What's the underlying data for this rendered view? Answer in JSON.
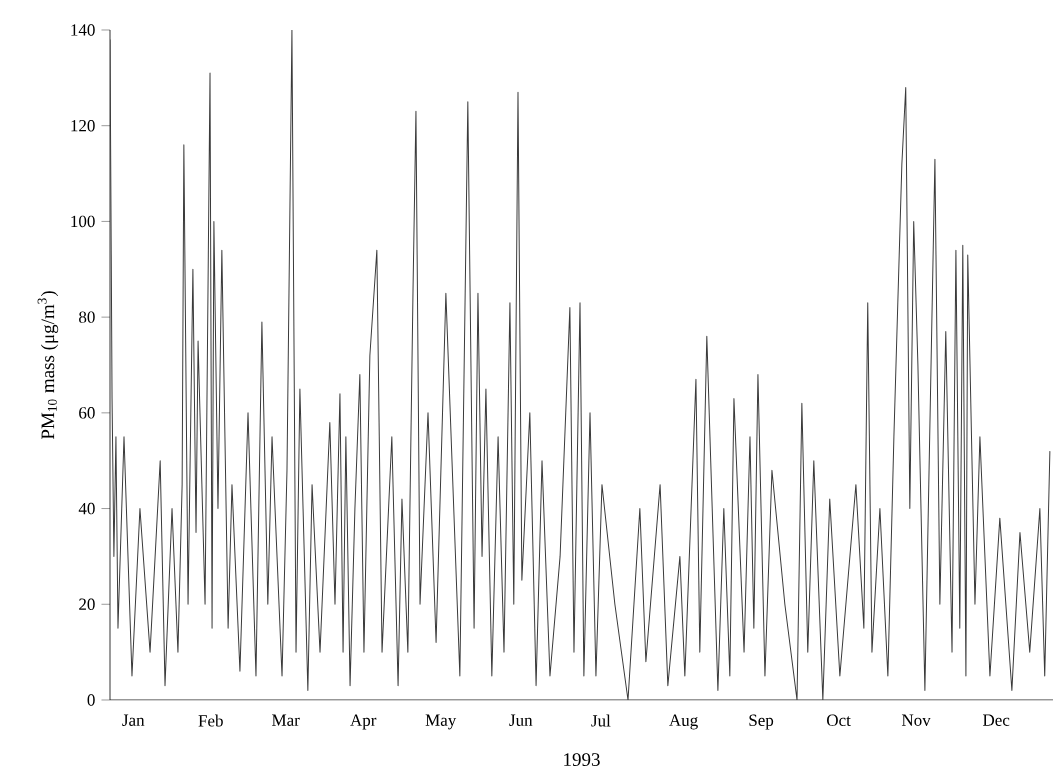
{
  "chart_data": {
    "type": "line",
    "xlabel": "1993",
    "ylabel": "PM$_{10}$ mass (μg/m$^{3}$)",
    "xlim": [
      "1993-01-01",
      "1994-01-01"
    ],
    "ylim": [
      0,
      140
    ],
    "xticks": [
      {
        "value": "1993-01-10",
        "label": "Jan"
      },
      {
        "value": "1993-02-09",
        "label": "Feb"
      },
      {
        "value": "1993-03-10",
        "label": "Mar"
      },
      {
        "value": "1993-04-09",
        "label": "Apr"
      },
      {
        "value": "1993-05-09",
        "label": "May"
      },
      {
        "value": "1993-06-09",
        "label": "Jun"
      },
      {
        "value": "1993-07-10",
        "label": "Jul"
      },
      {
        "value": "1993-08-11",
        "label": "Aug"
      },
      {
        "value": "1993-09-10",
        "label": "Sep"
      },
      {
        "value": "1993-10-10",
        "label": "Oct"
      },
      {
        "value": "1993-11-09",
        "label": "Nov"
      },
      {
        "value": "1993-12-10",
        "label": "Dec"
      }
    ],
    "yticks": [
      0,
      20,
      40,
      60,
      80,
      100,
      120,
      140
    ],
    "grid": false,
    "line_style": "solid",
    "x": [
      "1993-01-01T00:00",
      "1993-01-01T19:00",
      "1993-01-02T12:00",
      "1993-01-03T07:00",
      "1993-01-04T02:00",
      "1993-01-06T10:00",
      "1993-01-09T12:00",
      "1993-01-12T14:00",
      "1993-01-16T12:00",
      "1993-01-20T10:00",
      "1993-01-22T07:00",
      "1993-01-25T00:00",
      "1993-01-27T07:00",
      "1993-01-28T22:00",
      "1993-01-29T14:00",
      "1993-01-31T05:00",
      "1993-02-02T02:00",
      "1993-02-03T07:00",
      "1993-02-04T02:00",
      "1993-02-06T19:00",
      "1993-02-08T17:00",
      "1993-02-09T12:00",
      "1993-02-10T05:00",
      "1993-02-11T19:00",
      "1993-02-13T07:00",
      "1993-02-15T17:00",
      "1993-02-17T05:00",
      "1993-02-20T07:00",
      "1993-02-23T10:00",
      "1993-02-26T12:00",
      "1993-02-28T19:00",
      "1993-03-03T02:00",
      "1993-03-04T17:00",
      "1993-03-08T14:00",
      "1993-03-10T12:00",
      "1993-03-12T10:00",
      "1993-03-14T00:00",
      "1993-03-15T12:00",
      "1993-03-18T14:00",
      "1993-03-20T05:00",
      "1993-03-23T07:00",
      "1993-03-27T02:00",
      "1993-03-29T02:00",
      "1993-03-31T00:00",
      "1993-04-01T05:00",
      "1993-04-02T07:00",
      "1993-04-03T22:00",
      "1993-04-05T19:00",
      "1993-04-07T17:00",
      "1993-04-09T07:00",
      "1993-04-11T14:00",
      "1993-04-14T07:00",
      "1993-04-16T07:00",
      "1993-04-20T02:00",
      "1993-04-22T12:00",
      "1993-04-24T00:00",
      "1993-04-26T07:00",
      "1993-04-28T07:00",
      "1993-04-29T10:00",
      "1993-05-01T00:00",
      "1993-05-04T02:00",
      "1993-05-07T05:00",
      "1993-05-11T00:00",
      "1993-05-16T10:00",
      "1993-05-19T12:00",
      "1993-05-21T22:00",
      "1993-05-23T10:00",
      "1993-05-25T00:00",
      "1993-05-26T12:00",
      "1993-05-28T19:00",
      "1993-05-31T05:00",
      "1993-06-02T12:00",
      "1993-06-04T19:00",
      "1993-06-06T07:00",
      "1993-06-07T22:00",
      "1993-06-09T10:00",
      "1993-06-12T12:00",
      "1993-06-14T22:00",
      "1993-06-17T05:00",
      "1993-06-20T07:00",
      "1993-06-24T05:00",
      "1993-06-28T00:00",
      "1993-06-29T14:00",
      "1993-06-30T17:00",
      "1993-07-01T22:00",
      "1993-07-03T10:00",
      "1993-07-05T19:00",
      "1993-07-08T02:00",
      "1993-07-10T10:00",
      "1993-07-15T10:00",
      "1993-07-20T12:00",
      "1993-07-25T02:00",
      "1993-07-27T10:00",
      "1993-08-01T22:00",
      "1993-08-04T22:00",
      "1993-08-09T14:00",
      "1993-08-11T12:00",
      "1993-08-15T19:00",
      "1993-08-17T07:00",
      "1993-08-20T00:00",
      "1993-08-24T07:00",
      "1993-08-26T14:00",
      "1993-08-28T22:00",
      "1993-08-30T12:00",
      "1993-09-03T10:00",
      "1993-09-05T17:00",
      "1993-09-07T05:00",
      "1993-09-08T19:00",
      "1993-09-11T12:00",
      "1993-09-14T05:00",
      "1993-09-19T05:00",
      "1993-09-23T22:00",
      "1993-09-25T19:00",
      "1993-09-28T02:00",
      "1993-09-30T10:00",
      "1993-10-03T22:00",
      "1993-10-06T14:00",
      "1993-10-10T12:00",
      "1993-10-16T17:00",
      "1993-10-19T19:00",
      "1993-10-21T07:00",
      "1993-10-22T22:00",
      "1993-10-26T00:00",
      "1993-10-29T02:00",
      "1993-10-31T10:00",
      "1993-11-03T12:00",
      "1993-11-05T00:00",
      "1993-11-06T14:00",
      "1993-11-08T02:00",
      "1993-11-09T17:00",
      "1993-11-12T10:00",
      "1993-11-16T07:00",
      "1993-11-18T05:00",
      "1993-11-20T12:00",
      "1993-11-22T22:00",
      "1993-11-24T10:00",
      "1993-11-25T22:00",
      "1993-11-27T02:00",
      "1993-11-28T07:00",
      "1993-11-29T00:00",
      "1993-12-01T19:00",
      "1993-12-03T17:00",
      "1993-12-07T14:00",
      "1993-12-11T10:00",
      "1993-12-16T02:00",
      "1993-12-19T05:00",
      "1993-12-23T00:00",
      "1993-12-26T22:00",
      "1993-12-28T19:00",
      "1993-12-30T19:00"
    ],
    "series": [
      {
        "color": "#3a3a3a",
        "values": [
          138,
          63,
          30,
          55,
          15,
          55,
          5,
          40,
          10,
          50,
          3,
          40,
          10,
          45,
          116,
          20,
          90,
          35,
          75,
          20,
          131,
          15,
          100,
          40,
          94,
          15,
          45,
          6,
          60,
          5,
          79,
          20,
          55,
          5,
          48,
          140,
          10,
          65,
          2,
          45,
          10,
          58,
          20,
          64,
          10,
          55,
          3,
          40,
          68,
          10,
          72,
          94,
          10,
          55,
          3,
          42,
          10,
          86,
          123,
          20,
          60,
          12,
          85,
          5,
          125,
          15,
          85,
          30,
          65,
          5,
          55,
          10,
          83,
          20,
          127,
          25,
          60,
          3,
          50,
          5,
          30,
          82,
          10,
          45,
          83,
          5,
          60,
          5,
          45,
          20,
          0,
          40,
          8,
          45,
          3,
          30,
          5,
          67,
          10,
          76,
          2,
          40,
          5,
          63,
          10,
          55,
          15,
          68,
          5,
          48,
          20,
          0,
          62,
          10,
          50,
          0,
          42,
          5,
          45,
          15,
          83,
          10,
          40,
          5,
          55,
          112,
          128,
          40,
          100,
          70,
          2,
          113,
          20,
          77,
          10,
          94,
          15,
          95,
          5,
          93,
          20,
          55,
          5,
          38,
          2,
          35,
          10,
          40,
          5,
          52
        ]
      }
    ]
  }
}
